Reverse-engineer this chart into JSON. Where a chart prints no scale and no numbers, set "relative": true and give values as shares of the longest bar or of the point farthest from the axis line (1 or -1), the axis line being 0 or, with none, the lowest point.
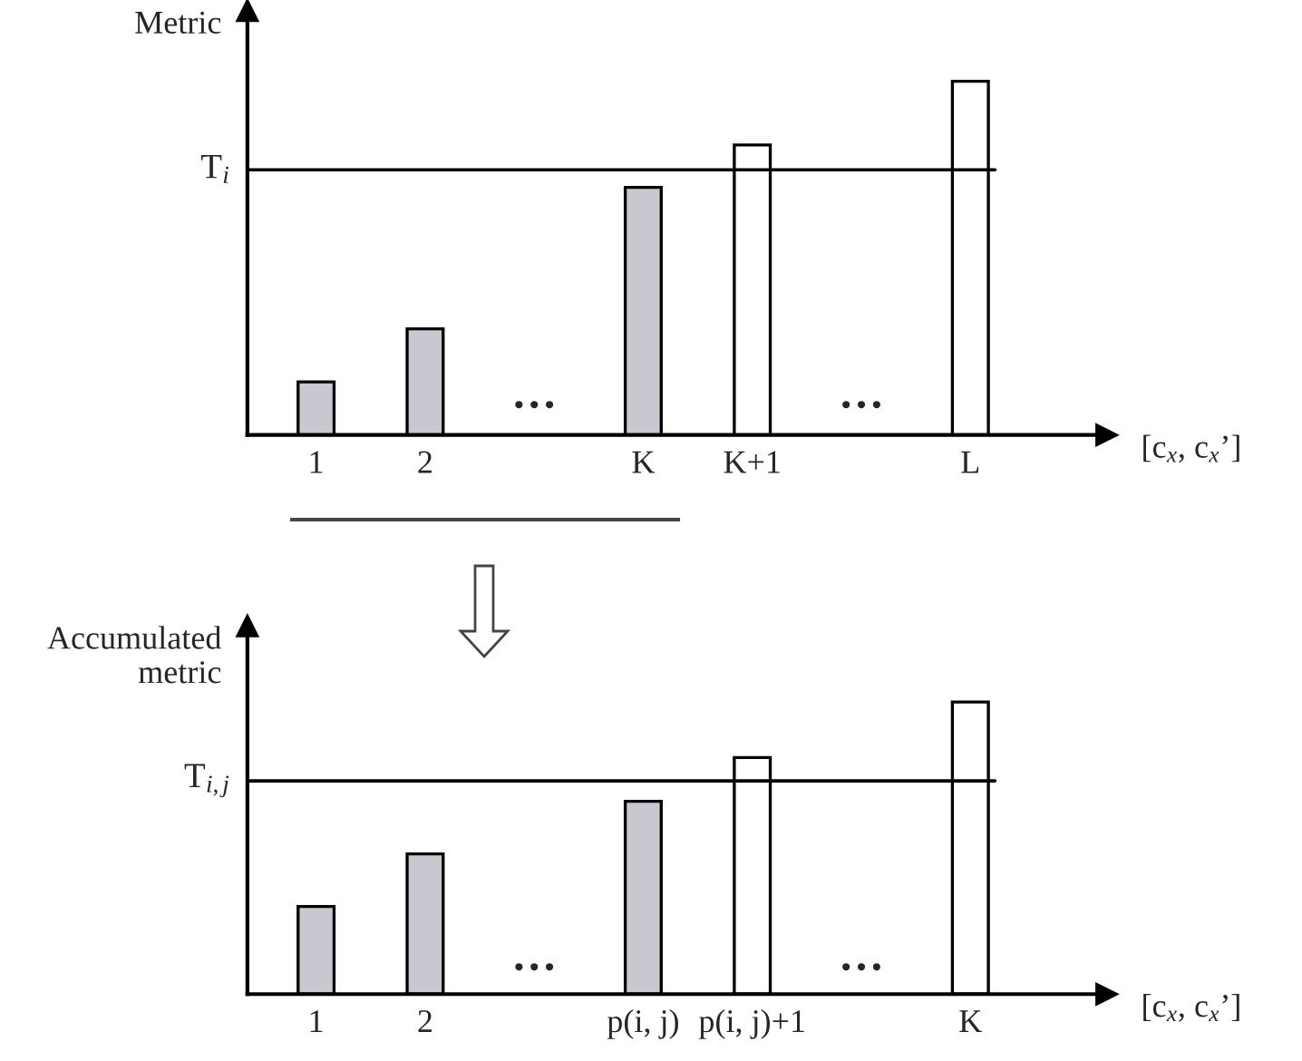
{
  "chart_data": [
    {
      "type": "bar",
      "relative": true,
      "ylabel": "Metric",
      "xlabel": "[c$_{x}$, c$_{x}$’]",
      "categories": [
        "1",
        "2",
        null,
        "K",
        "K+1",
        null,
        "L"
      ],
      "values": [
        0.15,
        0.3,
        null,
        0.7,
        0.82,
        null,
        1
      ],
      "colors": [
        "#c8c8d0",
        "#c8c8d0",
        null,
        "#c8c8d0",
        "#ffffff",
        null,
        "#ffffff"
      ],
      "ref_lines": [
        {
          "axis": "y",
          "value": 0.75,
          "label": "T$_{i}$",
          "color": "#000000"
        }
      ],
      "annotations": [
        "…",
        "…"
      ]
    },
    {
      "type": "bar",
      "relative": true,
      "ylabel": "Accumulated\nmetric",
      "xlabel": "[c$_{x}$, c$_{x}$’]",
      "categories": [
        "1",
        "2",
        null,
        "p(i, j)",
        "p(i, j)+1",
        null,
        "K"
      ],
      "values": [
        0.3,
        0.48,
        null,
        0.66,
        0.81,
        null,
        1
      ],
      "colors": [
        "#c8c8d0",
        "#c8c8d0",
        null,
        "#c8c8d0",
        "#ffffff",
        null,
        "#ffffff"
      ],
      "ref_lines": [
        {
          "axis": "y",
          "value": 0.73,
          "label": "T$_{i,j}$",
          "color": "#000000"
        }
      ],
      "annotations": [
        "…",
        "…"
      ]
    }
  ]
}
